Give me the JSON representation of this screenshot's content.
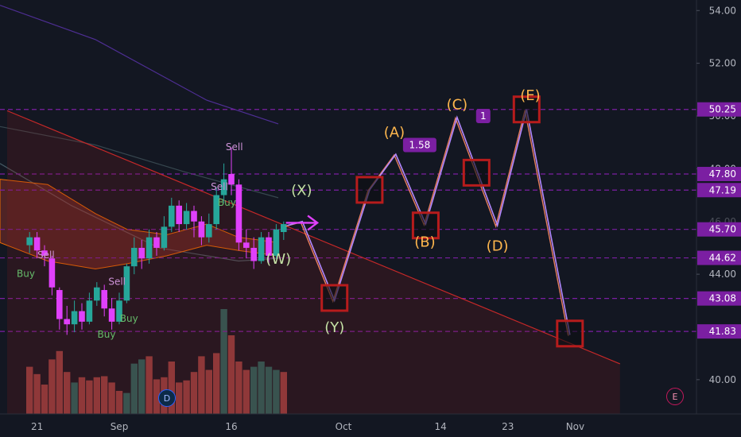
{
  "chart_data": {
    "type": "line",
    "y_axis": {
      "range": [
        38.7,
        54.4
      ],
      "ticks": [
        "54.00",
        "52.00",
        "50.00",
        "48.00",
        "44.00",
        "40.00"
      ],
      "faded_tick_value": 46.0,
      "faded_tick_label": "46.00"
    },
    "x_axis": {
      "ticks": [
        "21",
        "Sep",
        "16",
        "Oct",
        "14",
        "23",
        "Nov"
      ],
      "tick_days": [
        -11,
        0,
        15,
        30,
        43,
        52,
        61
      ]
    },
    "price_levels": [
      {
        "value": 50.25,
        "label": "50.25",
        "color": "#7b1fa2"
      },
      {
        "value": 47.8,
        "label": "47.80",
        "color": "#7b1fa2"
      },
      {
        "value": 47.19,
        "label": "47.19",
        "color": "#7b1fa2"
      },
      {
        "value": 45.7,
        "label": "45.70",
        "color": "#7b1fa2"
      },
      {
        "value": 44.62,
        "label": "44.62",
        "color": "#7b1fa2"
      },
      {
        "value": 43.08,
        "label": "43.08",
        "color": "#7b1fa2"
      },
      {
        "value": 41.83,
        "label": "41.83",
        "color": "#7b1fa2"
      }
    ],
    "projection_path": [
      {
        "day": 22.5,
        "price": 45.85
      },
      {
        "day": 24.5,
        "price": 46.0
      },
      {
        "day": 28.8,
        "price": 43.0
      },
      {
        "day": 33.5,
        "price": 47.2
      },
      {
        "day": 37.0,
        "price": 48.55
      },
      {
        "day": 41.0,
        "price": 45.9
      },
      {
        "day": 45.2,
        "price": 49.95
      },
      {
        "day": 50.6,
        "price": 45.85
      },
      {
        "day": 54.5,
        "price": 50.25
      },
      {
        "day": 60.3,
        "price": 41.7
      }
    ],
    "wave_labels": [
      {
        "text": "(W)",
        "day": 21.3,
        "price": 44.4,
        "color": "#c5e1a5"
      },
      {
        "text": "(X)",
        "day": 24.4,
        "price": 47.0,
        "color": "#c5e1a5"
      },
      {
        "text": "(Y)",
        "day": 28.8,
        "price": 41.8,
        "color": "#c5e1a5"
      },
      {
        "text": "(A)",
        "day": 36.8,
        "price": 49.2,
        "color": "#ffb74d"
      },
      {
        "text": "(B)",
        "day": 40.9,
        "price": 45.05,
        "color": "#ffb74d"
      },
      {
        "text": "(C)",
        "day": 45.2,
        "price": 50.25,
        "color": "#ffb74d"
      },
      {
        "text": "(D)",
        "day": 50.6,
        "price": 44.9,
        "color": "#ffb74d"
      },
      {
        "text": "(E)",
        "day": 55.0,
        "price": 50.6,
        "color": "#ffb74d"
      }
    ],
    "target_boxes": [
      {
        "day": 28.8,
        "price": 43.1
      },
      {
        "day": 33.5,
        "price": 47.2
      },
      {
        "day": 41.0,
        "price": 45.85
      },
      {
        "day": 47.8,
        "price": 47.85
      },
      {
        "day": 54.5,
        "price": 50.25
      },
      {
        "day": 60.3,
        "price": 41.75
      }
    ],
    "fib_tags": [
      {
        "text": "1.58",
        "day": 40.2,
        "price": 48.9
      },
      {
        "text": "1",
        "day": 48.7,
        "price": 50.0
      }
    ],
    "signals": [
      {
        "text": "Sell",
        "day": -9.8,
        "price": 44.6,
        "color": "#ce93d8"
      },
      {
        "text": "Sell",
        "day": -0.3,
        "price": 43.6,
        "color": "#ce93d8"
      },
      {
        "text": "Buy",
        "day": -1.7,
        "price": 41.6,
        "color": "#66bb6a"
      },
      {
        "text": "Buy",
        "day": 1.3,
        "price": 42.2,
        "color": "#66bb6a"
      },
      {
        "text": "Sell",
        "day": 15.4,
        "price": 48.7,
        "color": "#ce93d8"
      },
      {
        "text": "Sell",
        "day": 13.4,
        "price": 47.2,
        "color": "#ce93d8"
      },
      {
        "text": "Buy",
        "day": 14.4,
        "price": 46.6,
        "color": "#66bb6a"
      },
      {
        "text": "Buy",
        "day": -12.5,
        "price": 43.9,
        "color": "#66bb6a"
      }
    ],
    "candles": [
      {
        "day": -12,
        "o": 45.1,
        "c": 45.4,
        "h": 45.6,
        "l": 44.8
      },
      {
        "day": -11,
        "o": 45.4,
        "c": 44.9,
        "h": 45.6,
        "l": 44.6
      },
      {
        "day": -10,
        "o": 44.9,
        "c": 44.7,
        "h": 45.1,
        "l": 44.3
      },
      {
        "day": -9,
        "o": 44.6,
        "c": 43.5,
        "h": 44.7,
        "l": 43.2
      },
      {
        "day": -8,
        "o": 43.4,
        "c": 42.3,
        "h": 43.5,
        "l": 41.9
      },
      {
        "day": -7,
        "o": 42.3,
        "c": 42.1,
        "h": 42.8,
        "l": 41.7
      },
      {
        "day": -6,
        "o": 42.1,
        "c": 42.6,
        "h": 43.0,
        "l": 41.8
      },
      {
        "day": -5,
        "o": 42.6,
        "c": 42.2,
        "h": 42.9,
        "l": 41.9
      },
      {
        "day": -4,
        "o": 42.2,
        "c": 43.0,
        "h": 43.3,
        "l": 42.1
      },
      {
        "day": -3,
        "o": 43.0,
        "c": 43.5,
        "h": 43.7,
        "l": 42.8
      },
      {
        "day": -2,
        "o": 43.4,
        "c": 42.7,
        "h": 43.6,
        "l": 42.4
      },
      {
        "day": -1,
        "o": 42.7,
        "c": 42.2,
        "h": 43.1,
        "l": 41.9
      },
      {
        "day": 0,
        "o": 42.2,
        "c": 43.0,
        "h": 43.3,
        "l": 42.1
      },
      {
        "day": 1,
        "o": 43.0,
        "c": 44.3,
        "h": 44.4,
        "l": 42.9
      },
      {
        "day": 2,
        "o": 44.3,
        "c": 45.0,
        "h": 45.4,
        "l": 44.0
      },
      {
        "day": 3,
        "o": 45.0,
        "c": 44.6,
        "h": 45.3,
        "l": 44.2
      },
      {
        "day": 4,
        "o": 44.6,
        "c": 45.4,
        "h": 45.7,
        "l": 44.4
      },
      {
        "day": 5,
        "o": 45.4,
        "c": 45.0,
        "h": 45.6,
        "l": 44.7
      },
      {
        "day": 6,
        "o": 45.0,
        "c": 45.8,
        "h": 46.2,
        "l": 44.9
      },
      {
        "day": 7,
        "o": 45.8,
        "c": 46.6,
        "h": 46.9,
        "l": 45.6
      },
      {
        "day": 8,
        "o": 46.6,
        "c": 45.9,
        "h": 46.8,
        "l": 45.6
      },
      {
        "day": 9,
        "o": 45.9,
        "c": 46.4,
        "h": 46.7,
        "l": 45.7
      },
      {
        "day": 10,
        "o": 46.4,
        "c": 46.0,
        "h": 46.6,
        "l": 45.4
      },
      {
        "day": 11,
        "o": 46.0,
        "c": 45.4,
        "h": 46.2,
        "l": 45.1
      },
      {
        "day": 12,
        "o": 45.4,
        "c": 45.9,
        "h": 46.3,
        "l": 45.2
      },
      {
        "day": 13,
        "o": 45.9,
        "c": 47.0,
        "h": 47.3,
        "l": 45.7
      },
      {
        "day": 14,
        "o": 47.0,
        "c": 47.6,
        "h": 48.2,
        "l": 46.7
      },
      {
        "day": 15,
        "o": 47.8,
        "c": 47.4,
        "h": 48.8,
        "l": 47.0
      },
      {
        "day": 16,
        "o": 47.4,
        "c": 45.2,
        "h": 47.6,
        "l": 44.9
      },
      {
        "day": 17,
        "o": 45.2,
        "c": 45.0,
        "h": 45.7,
        "l": 44.6
      },
      {
        "day": 18,
        "o": 45.0,
        "c": 44.5,
        "h": 45.4,
        "l": 44.2
      },
      {
        "day": 19,
        "o": 44.5,
        "c": 45.4,
        "h": 45.6,
        "l": 44.4
      },
      {
        "day": 20,
        "o": 45.4,
        "c": 44.7,
        "h": 45.6,
        "l": 44.4
      },
      {
        "day": 21,
        "o": 44.7,
        "c": 45.7,
        "h": 45.9,
        "l": 44.6
      },
      {
        "day": 22,
        "o": 45.6,
        "c": 45.9,
        "h": 46.0,
        "l": 45.3
      }
    ],
    "volume": [
      {
        "day": -12,
        "v": 0.45,
        "up": false
      },
      {
        "day": -11,
        "v": 0.38,
        "up": false
      },
      {
        "day": -10,
        "v": 0.28,
        "up": false
      },
      {
        "day": -9,
        "v": 0.52,
        "up": false
      },
      {
        "day": -8,
        "v": 0.6,
        "up": false
      },
      {
        "day": -7,
        "v": 0.4,
        "up": false
      },
      {
        "day": -6,
        "v": 0.3,
        "up": true
      },
      {
        "day": -5,
        "v": 0.35,
        "up": false
      },
      {
        "day": -4,
        "v": 0.32,
        "up": false
      },
      {
        "day": -3,
        "v": 0.35,
        "up": false
      },
      {
        "day": -2,
        "v": 0.36,
        "up": false
      },
      {
        "day": -1,
        "v": 0.3,
        "up": false
      },
      {
        "day": 0,
        "v": 0.22,
        "up": false
      },
      {
        "day": 1,
        "v": 0.2,
        "up": true
      },
      {
        "day": 2,
        "v": 0.48,
        "up": true
      },
      {
        "day": 3,
        "v": 0.52,
        "up": true
      },
      {
        "day": 4,
        "v": 0.55,
        "up": false
      },
      {
        "day": 5,
        "v": 0.33,
        "up": false
      },
      {
        "day": 6,
        "v": 0.35,
        "up": false
      },
      {
        "day": 7,
        "v": 0.5,
        "up": false
      },
      {
        "day": 8,
        "v": 0.3,
        "up": false
      },
      {
        "day": 9,
        "v": 0.32,
        "up": false
      },
      {
        "day": 10,
        "v": 0.4,
        "up": false
      },
      {
        "day": 11,
        "v": 0.55,
        "up": false
      },
      {
        "day": 12,
        "v": 0.42,
        "up": false
      },
      {
        "day": 13,
        "v": 0.58,
        "up": false
      },
      {
        "day": 14,
        "v": 1.0,
        "up": true
      },
      {
        "day": 15,
        "v": 0.75,
        "up": false
      },
      {
        "day": 16,
        "v": 0.5,
        "up": false
      },
      {
        "day": 17,
        "v": 0.42,
        "up": false
      },
      {
        "day": 18,
        "v": 0.45,
        "up": true
      },
      {
        "day": 19,
        "v": 0.5,
        "up": true
      },
      {
        "day": 20,
        "v": 0.45,
        "up": true
      },
      {
        "day": 21,
        "v": 0.42,
        "up": true
      },
      {
        "day": 22,
        "v": 0.4,
        "up": false
      }
    ],
    "trendline": {
      "from": {
        "day": -15,
        "price": 50.2
      },
      "to": {
        "day": 67,
        "price": 40.6
      }
    },
    "arrow": {
      "from": {
        "day": 22.3,
        "price": 45.95
      },
      "to": {
        "day": 26.5,
        "price": 45.95
      }
    },
    "colors": {
      "background": "#131722",
      "up": "#26a69a",
      "down": "#e040fb",
      "projection": "#b388ff",
      "projection_alt": "#ff8a65",
      "box": "#b71c1c",
      "level": "#7b1fa2",
      "tag_bg": "#7b1fa2",
      "axis_text": "#b2b5be"
    }
  },
  "badges": {
    "d": "D",
    "e": "E"
  }
}
